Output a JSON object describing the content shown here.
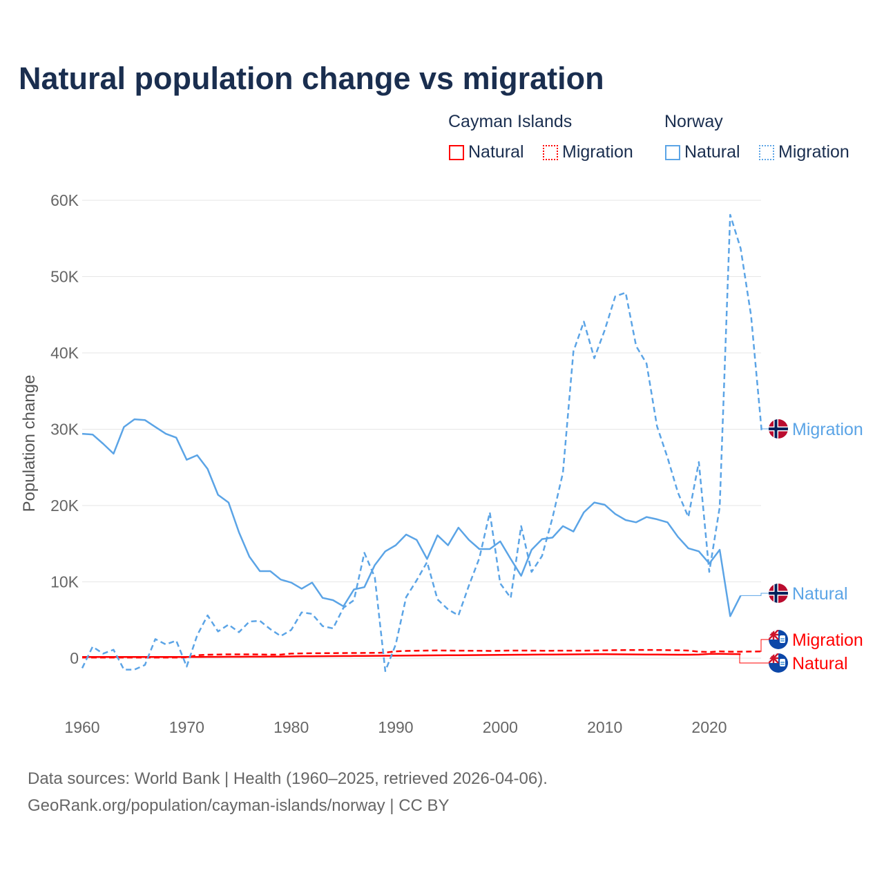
{
  "title": "Natural population change vs migration",
  "legend": {
    "groups": [
      {
        "name": "Cayman Islands",
        "color": "#ff0000",
        "items": [
          "Natural",
          "Migration"
        ]
      },
      {
        "name": "Norway",
        "color": "#5ba4e6",
        "items": [
          "Natural",
          "Migration"
        ]
      }
    ]
  },
  "source": {
    "line1": "Data sources: World Bank | Health (1960–2025, retrieved 2026-04-06).",
    "line2": "GeoRank.org/population/cayman-islands/norway | CC BY"
  },
  "chart_data": {
    "type": "line",
    "title": "Natural population change vs migration",
    "xlabel": "",
    "ylabel": "Population change",
    "xlim": [
      1960,
      2025
    ],
    "ylim": [
      -6000,
      62000
    ],
    "xticks": [
      1960,
      1970,
      1980,
      1990,
      2000,
      2010,
      2020
    ],
    "xtick_labels": [
      "1960",
      "1970",
      "1980",
      "1990",
      "2000",
      "2010",
      "2020"
    ],
    "yticks": [
      0,
      10000,
      20000,
      30000,
      40000,
      50000,
      60000
    ],
    "ytick_labels": [
      "0",
      "10K",
      "20K",
      "30K",
      "40K",
      "50K",
      "60K"
    ],
    "grid": true,
    "legend_position": "top-right",
    "series": [
      {
        "name": "Norway Natural",
        "country": "Norway",
        "kind": "Natural",
        "label": "Natural",
        "color": "#5ba4e6",
        "dash": false,
        "start": 1960,
        "values": [
          29400,
          29300,
          28100,
          26800,
          30300,
          31300,
          31200,
          30300,
          29400,
          28900,
          26000,
          26600,
          24800,
          21400,
          20400,
          16500,
          13300,
          11400,
          11400,
          10300,
          9900,
          9100,
          9900,
          7900,
          7600,
          6800,
          9000,
          9300,
          12200,
          14000,
          14800,
          16200,
          15500,
          13000,
          16100,
          14800,
          17100,
          15500,
          14300,
          14300,
          15300,
          13000,
          10800,
          14200,
          15600,
          15800,
          17300,
          16600,
          19100,
          20400,
          20100,
          18900,
          18100,
          17800,
          18500,
          18200,
          17800,
          15900,
          14400,
          14000,
          12400,
          14200,
          5500,
          8200
        ]
      },
      {
        "name": "Norway Migration",
        "country": "Norway",
        "kind": "Migration",
        "label": "Migration",
        "color": "#5ba4e6",
        "dash": true,
        "start": 1960,
        "values": [
          -1300,
          1500,
          600,
          1100,
          -1500,
          -1500,
          -900,
          2500,
          1800,
          2300,
          -1100,
          3000,
          5600,
          3500,
          4400,
          3400,
          4800,
          4900,
          3800,
          2900,
          3700,
          6000,
          5800,
          4200,
          3900,
          6600,
          7600,
          13800,
          10600,
          -1700,
          1800,
          8000,
          10200,
          12600,
          7700,
          6400,
          5600,
          9500,
          13100,
          19100,
          9800,
          7900,
          17300,
          11300,
          13400,
          18400,
          24300,
          40200,
          44100,
          39300,
          43000,
          47400,
          47900,
          40900,
          38600,
          30400,
          26300,
          21700,
          18500,
          25700,
          11300,
          19800,
          58100,
          53700,
          44900,
          29900
        ]
      },
      {
        "name": "Cayman Islands Natural",
        "country": "Cayman Islands",
        "kind": "Natural",
        "label": "Natural",
        "color": "#ff0000",
        "dash": false,
        "start": 1960,
        "values": [
          150,
          150,
          150,
          150,
          150,
          150,
          150,
          150,
          150,
          150,
          150,
          160,
          170,
          170,
          180,
          180,
          190,
          190,
          200,
          210,
          230,
          240,
          250,
          260,
          270,
          280,
          290,
          300,
          310,
          320,
          330,
          340,
          350,
          360,
          370,
          380,
          390,
          400,
          410,
          420,
          430,
          440,
          450,
          460,
          470,
          480,
          490,
          500,
          510,
          520,
          520,
          510,
          500,
          490,
          480,
          470,
          460,
          450,
          450,
          480,
          550,
          560,
          540,
          530
        ]
      },
      {
        "name": "Cayman Islands Migration",
        "country": "Cayman Islands",
        "kind": "Migration",
        "label": "Migration",
        "color": "#ff0000",
        "dash": true,
        "start": 1960,
        "values": [
          80,
          80,
          80,
          80,
          80,
          80,
          80,
          80,
          80,
          80,
          100,
          380,
          450,
          480,
          500,
          500,
          500,
          480,
          460,
          460,
          600,
          620,
          640,
          650,
          660,
          670,
          680,
          690,
          700,
          720,
          900,
          950,
          980,
          1000,
          1010,
          1000,
          990,
          980,
          970,
          950,
          980,
          1000,
          1000,
          990,
          980,
          980,
          990,
          990,
          990,
          1000,
          1020,
          1050,
          1060,
          1070,
          1080,
          1070,
          1050,
          1030,
          1000,
          850,
          800,
          900,
          850,
          850,
          870,
          880
        ]
      }
    ]
  }
}
